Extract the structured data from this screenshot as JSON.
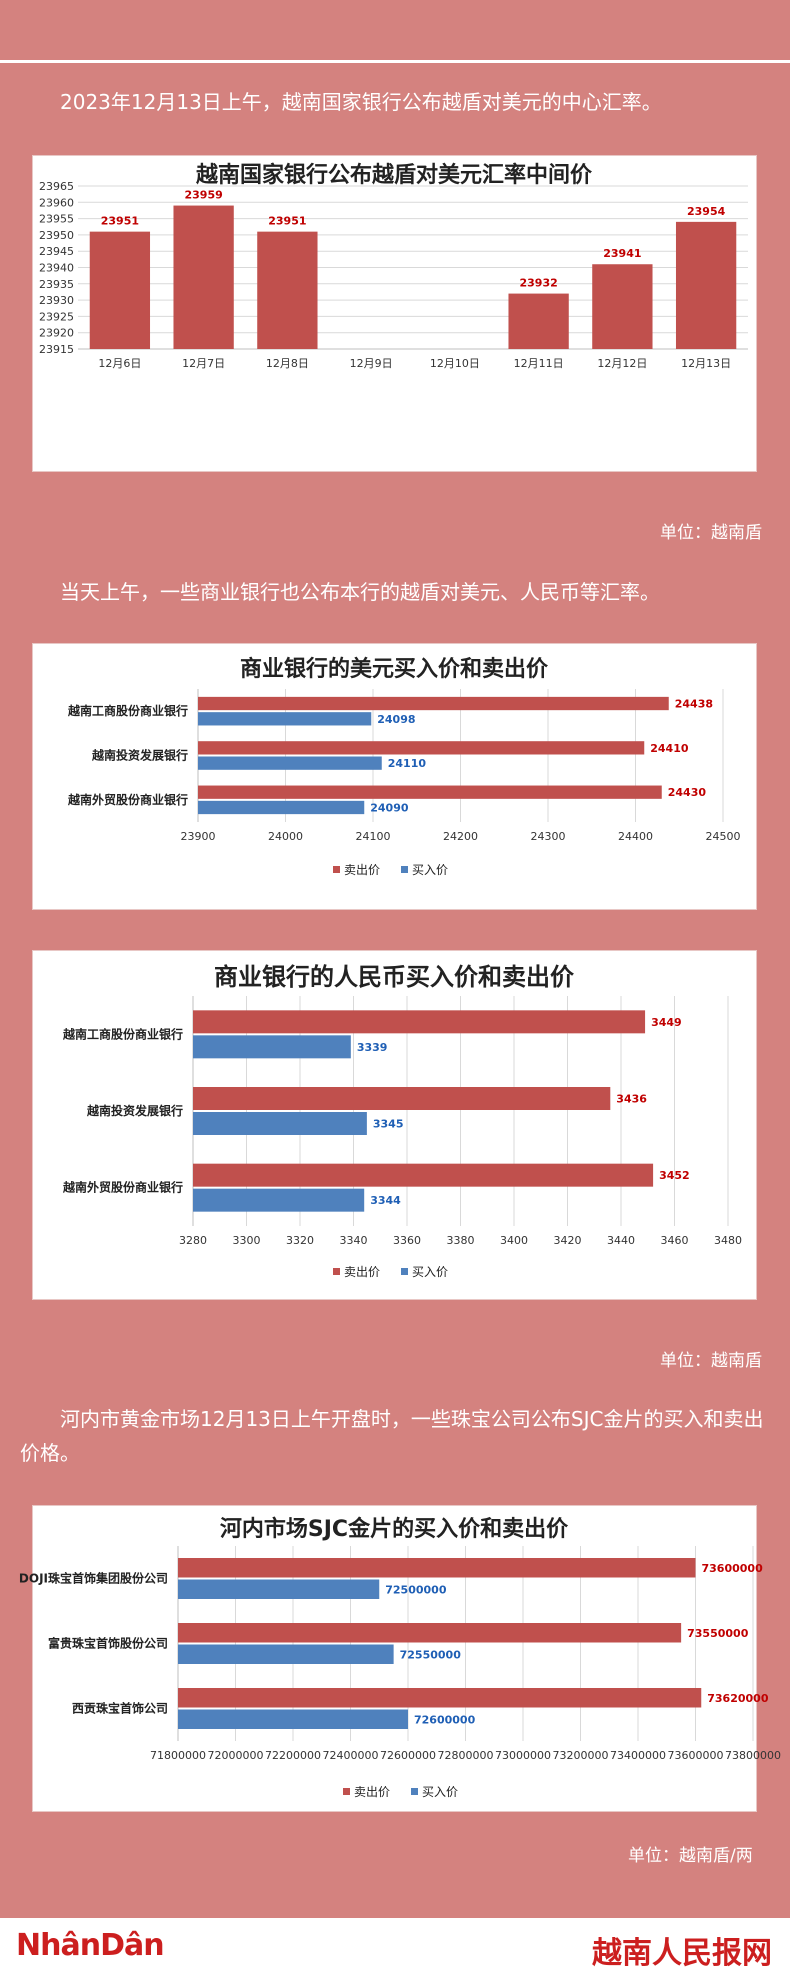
{
  "intro1": "2023年12月13日上午，越南国家银行公布越盾对美元的中心汇率。",
  "intro2": "当天上午，一些商业银行也公布本行的越盾对美元、人民币等汇率。",
  "intro3": "河内市黄金市场12月13日上午开盘时，一些珠宝公司公布SJC金片的买入和卖出价格。",
  "unit1": "单位：越南盾",
  "unit2": "单位：越南盾",
  "unit3": "单位：越南盾/两",
  "footer": {
    "left_logo": "NhânDân",
    "right_logo": "越南人民报网"
  },
  "colors": {
    "sell": "#c0504d",
    "buy": "#4f81bd",
    "background": "#d4827f"
  },
  "chart_data": [
    {
      "type": "bar",
      "title": "越南国家银行公布越盾对美元汇率中间价",
      "categories": [
        "12月6日",
        "12月7日",
        "12月8日",
        "12月9日",
        "12月10日",
        "12月11日",
        "12月12日",
        "12月13日"
      ],
      "values": [
        23951,
        23959,
        23951,
        null,
        null,
        23932,
        23941,
        23954
      ],
      "ylim": [
        23915,
        23965
      ],
      "yticks": [
        23965,
        23960,
        23955,
        23950,
        23945,
        23940,
        23935,
        23930,
        23925,
        23920,
        23915
      ],
      "grid": true
    },
    {
      "type": "bar",
      "orientation": "horizontal",
      "title": "商业银行的美元买入价和卖出价",
      "categories": [
        "越南工商股份商业银行",
        "越南投资发展银行",
        "越南外贸股份商业银行"
      ],
      "series": [
        {
          "name": "卖出价",
          "values": [
            24438,
            24410,
            24430
          ]
        },
        {
          "name": "买入价",
          "values": [
            24098,
            24110,
            24090
          ]
        }
      ],
      "xlim": [
        23900,
        24500
      ],
      "xticks": [
        23900,
        24000,
        24100,
        24200,
        24300,
        24400,
        24500
      ],
      "legend": "bottom"
    },
    {
      "type": "bar",
      "orientation": "horizontal",
      "title": "商业银行的人民币买入价和卖出价",
      "categories": [
        "越南工商股份商业银行",
        "越南投资发展银行",
        "越南外贸股份商业银行"
      ],
      "series": [
        {
          "name": "卖出价",
          "values": [
            3449,
            3436,
            3452
          ]
        },
        {
          "name": "买入价",
          "values": [
            3339,
            3345,
            3344
          ]
        }
      ],
      "xlim": [
        3280,
        3480
      ],
      "xticks": [
        3280,
        3300,
        3320,
        3340,
        3360,
        3380,
        3400,
        3420,
        3440,
        3460,
        3480
      ],
      "legend": "bottom"
    },
    {
      "type": "bar",
      "orientation": "horizontal",
      "title": "河内市场SJC金片的买入价和卖出价",
      "categories": [
        "DOJI珠宝首饰集团股份公司",
        "富贵珠宝首饰股份公司",
        "西贡珠宝首饰公司"
      ],
      "series": [
        {
          "name": "卖出价",
          "values": [
            73600000,
            73550000,
            73620000
          ]
        },
        {
          "name": "买入价",
          "values": [
            72500000,
            72550000,
            72600000
          ]
        }
      ],
      "xlim": [
        71800000,
        73800000
      ],
      "xticks": [
        71800000,
        72000000,
        72200000,
        72400000,
        72600000,
        72800000,
        73000000,
        73200000,
        73400000,
        73600000,
        73800000
      ],
      "legend": "bottom"
    }
  ]
}
